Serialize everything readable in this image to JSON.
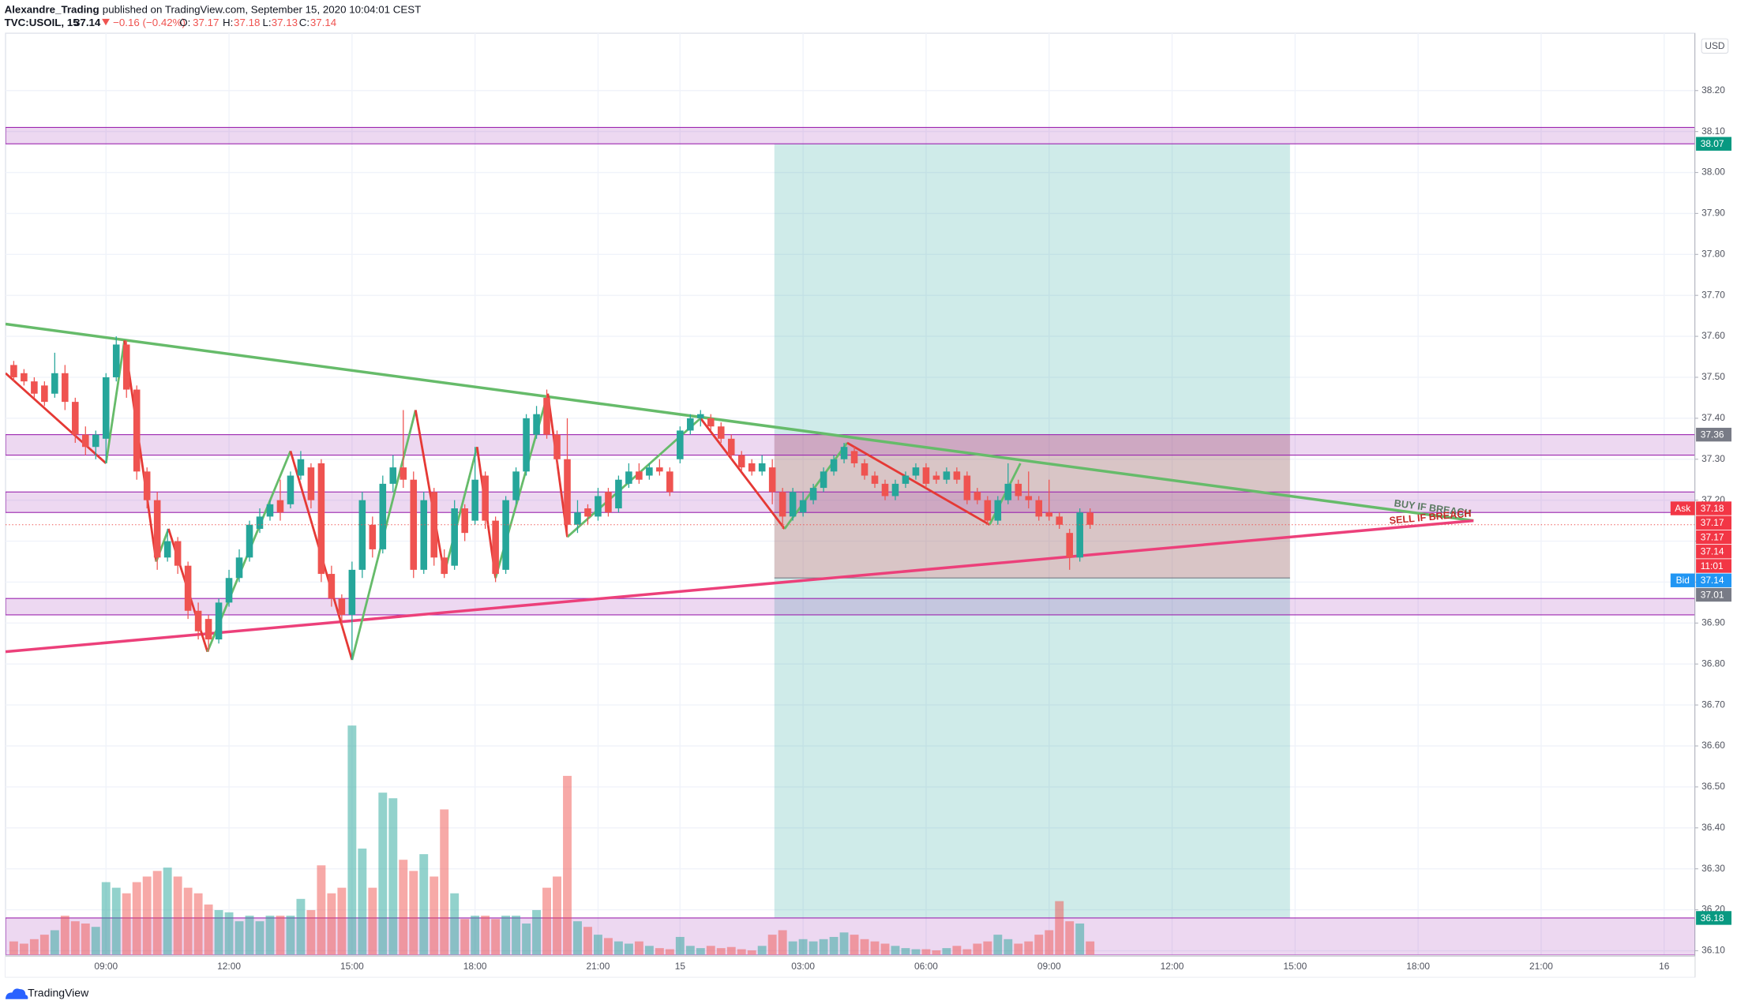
{
  "header": {
    "publisher": "Alexandre_Trading",
    "published": "published on TradingView.com, September 15, 2020 10:04:01 CEST"
  },
  "chart_data": {
    "type": "candlestick",
    "symbol": "TVC:USOIL, 15",
    "change": "−0.16 (−0.42%)",
    "ohlc_labels": [
      "O:",
      "H:",
      "L:",
      "C:"
    ],
    "currency": "USD",
    "colors": {
      "up": "#26a69a",
      "down": "#ef5350"
    },
    "grid": true,
    "x": [
      -9,
      -8,
      -7,
      -6,
      -5,
      -4,
      -3,
      -2,
      -1,
      0,
      1,
      2,
      3,
      4,
      5,
      6,
      7,
      8,
      9,
      10,
      11,
      12,
      13,
      14,
      15,
      16,
      17,
      18,
      19,
      20,
      21,
      22,
      23,
      24,
      25,
      26,
      27,
      28,
      29,
      30,
      31,
      32,
      33,
      34,
      35,
      36,
      37,
      38,
      39,
      40,
      41,
      42,
      43,
      44,
      45,
      46,
      47,
      48,
      49,
      50,
      51,
      52,
      53,
      54,
      55,
      56,
      57,
      58,
      59,
      60,
      61,
      62,
      63,
      64,
      65,
      66,
      67,
      68,
      69,
      70,
      71,
      72,
      73,
      74,
      75,
      76,
      77,
      78,
      79,
      80,
      81,
      82,
      83,
      84,
      85,
      86,
      87,
      88,
      89,
      90,
      91,
      92,
      93,
      94,
      95,
      96
    ],
    "open": [
      37.53,
      37.51,
      37.49,
      37.48,
      37.46,
      37.51,
      37.44,
      37.36,
      37.33,
      37.35,
      37.5,
      37.58,
      37.47,
      37.27,
      37.2,
      37.06,
      37.1,
      37.04,
      36.93,
      36.91,
      36.86,
      36.95,
      37.01,
      37.06,
      37.13,
      37.16,
      37.2,
      37.19,
      37.26,
      37.28,
      37.29,
      37.02,
      36.96,
      36.92,
      37.03,
      37.14,
      37.08,
      37.24,
      37.28,
      37.25,
      37.03,
      37.22,
      37.06,
      37.04,
      37.18,
      37.15,
      37.26,
      37.15,
      37.03,
      37.2,
      37.27,
      37.36,
      37.45,
      37.36,
      37.3,
      37.14,
      37.18,
      37.16,
      37.22,
      37.18,
      37.24,
      37.27,
      37.26,
      37.28,
      37.27,
      37.3,
      37.37,
      37.4,
      37.4,
      37.38,
      37.35,
      37.31,
      37.29,
      37.27,
      37.28,
      37.22,
      37.16,
      37.17,
      37.2,
      37.23,
      37.27,
      37.3,
      37.32,
      37.29,
      37.26,
      37.24,
      37.21,
      37.24,
      37.26,
      37.28,
      37.26,
      37.25,
      37.27,
      37.26,
      37.22,
      37.2,
      37.15,
      37.2,
      37.24,
      37.21,
      37.2,
      37.17,
      37.16,
      37.12,
      37.06,
      37.17
    ],
    "high": [
      37.54,
      37.52,
      37.5,
      37.49,
      37.56,
      37.53,
      37.45,
      37.38,
      37.37,
      37.51,
      37.6,
      37.59,
      37.48,
      37.28,
      37.22,
      37.13,
      37.11,
      37.05,
      36.95,
      36.92,
      36.96,
      37.03,
      37.08,
      37.15,
      37.18,
      37.2,
      37.25,
      37.27,
      37.32,
      37.29,
      37.3,
      37.04,
      36.97,
      37.05,
      37.22,
      37.16,
      37.26,
      37.31,
      37.42,
      37.27,
      37.22,
      37.23,
      37.08,
      37.2,
      37.19,
      37.33,
      37.27,
      37.16,
      37.21,
      37.28,
      37.41,
      37.43,
      37.47,
      37.37,
      37.4,
      37.2,
      37.19,
      37.23,
      37.23,
      37.26,
      37.29,
      37.29,
      37.29,
      37.3,
      37.28,
      37.38,
      37.41,
      37.42,
      37.41,
      37.39,
      37.36,
      37.32,
      37.3,
      37.31,
      37.3,
      37.23,
      37.23,
      37.22,
      37.24,
      37.28,
      37.31,
      37.34,
      37.33,
      37.3,
      37.27,
      37.25,
      37.25,
      37.27,
      37.29,
      37.29,
      37.27,
      37.28,
      37.28,
      37.27,
      37.23,
      37.21,
      37.21,
      37.29,
      37.25,
      37.27,
      37.21,
      37.25,
      37.17,
      37.13,
      37.18,
      37.18
    ],
    "low": [
      37.49,
      37.48,
      37.45,
      37.43,
      37.45,
      37.42,
      37.34,
      37.31,
      37.3,
      37.29,
      37.49,
      37.45,
      37.25,
      37.18,
      37.03,
      37.05,
      37.02,
      36.91,
      36.86,
      36.83,
      36.85,
      36.94,
      37.0,
      37.05,
      37.12,
      37.15,
      37.15,
      37.18,
      37.25,
      37.18,
      37.0,
      36.94,
      36.89,
      36.81,
      37.01,
      37.06,
      37.07,
      37.22,
      37.23,
      37.01,
      37.02,
      37.04,
      37.01,
      37.03,
      37.1,
      37.14,
      37.13,
      37.0,
      37.02,
      37.19,
      37.26,
      37.35,
      37.35,
      37.28,
      37.11,
      37.12,
      37.14,
      37.15,
      37.16,
      37.17,
      37.23,
      37.24,
      37.25,
      37.26,
      37.21,
      37.29,
      37.36,
      37.38,
      37.37,
      37.34,
      37.3,
      37.27,
      37.26,
      37.26,
      37.19,
      37.13,
      37.15,
      37.16,
      37.19,
      37.22,
      37.26,
      37.29,
      37.28,
      37.25,
      37.23,
      37.2,
      37.2,
      37.23,
      37.25,
      37.23,
      37.24,
      37.24,
      37.24,
      37.19,
      37.19,
      37.14,
      37.14,
      37.19,
      37.2,
      37.18,
      37.15,
      37.15,
      37.13,
      37.03,
      37.05,
      37.13
    ],
    "close": [
      37.5,
      37.49,
      37.46,
      37.44,
      37.51,
      37.44,
      37.36,
      37.33,
      37.36,
      37.5,
      37.58,
      37.47,
      37.27,
      37.2,
      37.06,
      37.1,
      37.04,
      36.93,
      36.88,
      36.86,
      36.95,
      37.01,
      37.06,
      37.14,
      37.16,
      37.19,
      37.17,
      37.26,
      37.3,
      37.2,
      37.02,
      36.96,
      36.92,
      37.03,
      37.2,
      37.08,
      37.24,
      37.28,
      37.25,
      37.03,
      37.2,
      37.06,
      37.02,
      37.18,
      37.12,
      37.25,
      37.15,
      37.02,
      37.2,
      37.27,
      37.4,
      37.41,
      37.36,
      37.3,
      37.14,
      37.17,
      37.16,
      37.21,
      37.17,
      37.25,
      37.27,
      37.25,
      37.28,
      37.27,
      37.22,
      37.37,
      37.4,
      37.41,
      37.38,
      37.35,
      37.31,
      37.28,
      37.27,
      37.29,
      37.22,
      37.16,
      37.22,
      37.2,
      37.23,
      37.27,
      37.3,
      37.33,
      37.29,
      37.26,
      37.24,
      37.21,
      37.24,
      37.26,
      37.28,
      37.24,
      37.25,
      37.27,
      37.25,
      37.2,
      37.2,
      37.15,
      37.2,
      37.24,
      37.21,
      37.2,
      37.16,
      37.16,
      37.14,
      37.06,
      37.17,
      37.14
    ],
    "volume": [
      12,
      10,
      14,
      18,
      22,
      35,
      30,
      28,
      25,
      65,
      60,
      55,
      65,
      70,
      75,
      78,
      70,
      60,
      55,
      45,
      40,
      38,
      30,
      35,
      30,
      35,
      35,
      35,
      50,
      40,
      80,
      55,
      60,
      205,
      95,
      60,
      145,
      140,
      85,
      75,
      90,
      70,
      130,
      55,
      32,
      35,
      35,
      32,
      35,
      35,
      28,
      40,
      60,
      70,
      160,
      30,
      25,
      18,
      15,
      12,
      10,
      12,
      8,
      6,
      5,
      16,
      8,
      6,
      8,
      6,
      7,
      5,
      4,
      8,
      18,
      22,
      12,
      14,
      12,
      14,
      16,
      20,
      18,
      14,
      12,
      10,
      8,
      6,
      5,
      5,
      4,
      6,
      8,
      5,
      10,
      12,
      18,
      14,
      10,
      12,
      18,
      22,
      48,
      30,
      28,
      12
    ],
    "xlim": [
      -9.8,
      155
    ],
    "xticks": [
      {
        "value": 0,
        "label": "09:00"
      },
      {
        "value": 12,
        "label": "12:00"
      },
      {
        "value": 24,
        "label": "15:00"
      },
      {
        "value": 36,
        "label": "18:00"
      },
      {
        "value": 48,
        "label": "21:00"
      },
      {
        "value": 56,
        "label": "15"
      },
      {
        "value": 68,
        "label": "03:00"
      },
      {
        "value": 80,
        "label": "06:00"
      },
      {
        "value": 92,
        "label": "09:00"
      },
      {
        "value": 104,
        "label": "12:00"
      },
      {
        "value": 116,
        "label": "15:00"
      },
      {
        "value": 128,
        "label": "18:00"
      },
      {
        "value": 140,
        "label": "21:00"
      },
      {
        "value": 152,
        "label": "16"
      }
    ],
    "ylim": [
      36.09,
      38.34
    ],
    "yticks": [
      {
        "value": 38.2,
        "label": "38.20"
      },
      {
        "value": 38.1,
        "label": "38.10"
      },
      {
        "value": 38.0,
        "label": "38.00"
      },
      {
        "value": 37.9,
        "label": "37.90"
      },
      {
        "value": 37.8,
        "label": "37.80"
      },
      {
        "value": 37.7,
        "label": "37.70"
      },
      {
        "value": 37.6,
        "label": "37.60"
      },
      {
        "value": 37.5,
        "label": "37.50"
      },
      {
        "value": 37.4,
        "label": "37.40"
      },
      {
        "value": 37.3,
        "label": "37.30"
      },
      {
        "value": 37.2,
        "label": "37.20"
      },
      {
        "value": 37.1,
        "label": "37.10"
      },
      {
        "value": 37.0,
        "label": "37.00"
      },
      {
        "value": 36.9,
        "label": "36.90"
      },
      {
        "value": 36.8,
        "label": "36.80"
      },
      {
        "value": 36.7,
        "label": "36.70"
      },
      {
        "value": 36.6,
        "label": "36.60"
      },
      {
        "value": 36.5,
        "label": "36.50"
      },
      {
        "value": 36.4,
        "label": "36.40"
      },
      {
        "value": 36.3,
        "label": "36.30"
      },
      {
        "value": 36.2,
        "label": "36.20"
      },
      {
        "value": 36.1,
        "label": "36.10"
      }
    ],
    "zones": [
      [
        38.07,
        38.11
      ],
      [
        37.31,
        37.36
      ],
      [
        37.17,
        37.22
      ],
      [
        36.92,
        36.96
      ],
      [
        36.09,
        36.18
      ]
    ],
    "zone_color": "#9c27b0",
    "position": {
      "x": [
        65.2,
        115.5
      ],
      "profit": [
        36.18,
        38.07
      ],
      "loss": [
        37.01,
        37.36
      ],
      "profit_color": "#26a69a",
      "loss_color": "#f7525f"
    },
    "trendlines": [
      {
        "points": [
          [
            -9.8,
            37.63
          ],
          [
            133.4,
            37.15
          ]
        ],
        "color": "#66bb6a",
        "label": "BUY IF BREACH",
        "label_color": "#5b7a62"
      },
      {
        "points": [
          [
            -9.8,
            36.83
          ],
          [
            133.4,
            37.15
          ]
        ],
        "color": "#ec407a",
        "label": "SELL IF BREACH",
        "label_color": "#c62828"
      }
    ],
    "zigzag": {
      "x": [
        -9.8,
        0,
        1.8,
        4.9,
        6.1,
        9.9,
        18,
        24,
        30.2,
        33,
        36.2,
        38,
        43.1,
        45,
        58,
        66.2,
        72.3,
        86.2,
        89.2
      ],
      "y": [
        37.51,
        37.29,
        37.59,
        37.05,
        37.13,
        36.83,
        37.32,
        36.81,
        37.42,
        37.02,
        37.33,
        37.01,
        37.46,
        37.11,
        37.4,
        37.13,
        37.34,
        37.14,
        37.29
      ],
      "up_color": "#66bb6a",
      "down_color": "#e53935"
    },
    "price_tags": [
      {
        "value": 38.07,
        "color": "#089981"
      },
      {
        "value": 37.36,
        "color": "#787b86"
      },
      {
        "value": 37.18,
        "color": "#f23645",
        "caption": "Ask"
      },
      {
        "value": 37.17,
        "color": "#f23645"
      },
      {
        "value": 37.17,
        "color": "#f23645"
      },
      {
        "value": 37.14,
        "color": "#f23645",
        "countdown": "11:01"
      },
      {
        "value": 37.14,
        "color": "#2196f3",
        "caption": "Bid"
      },
      {
        "value": 37.01,
        "color": "#787b86"
      },
      {
        "value": 36.18,
        "color": "#089981"
      }
    ]
  },
  "footer": {
    "brand": "TradingView"
  }
}
